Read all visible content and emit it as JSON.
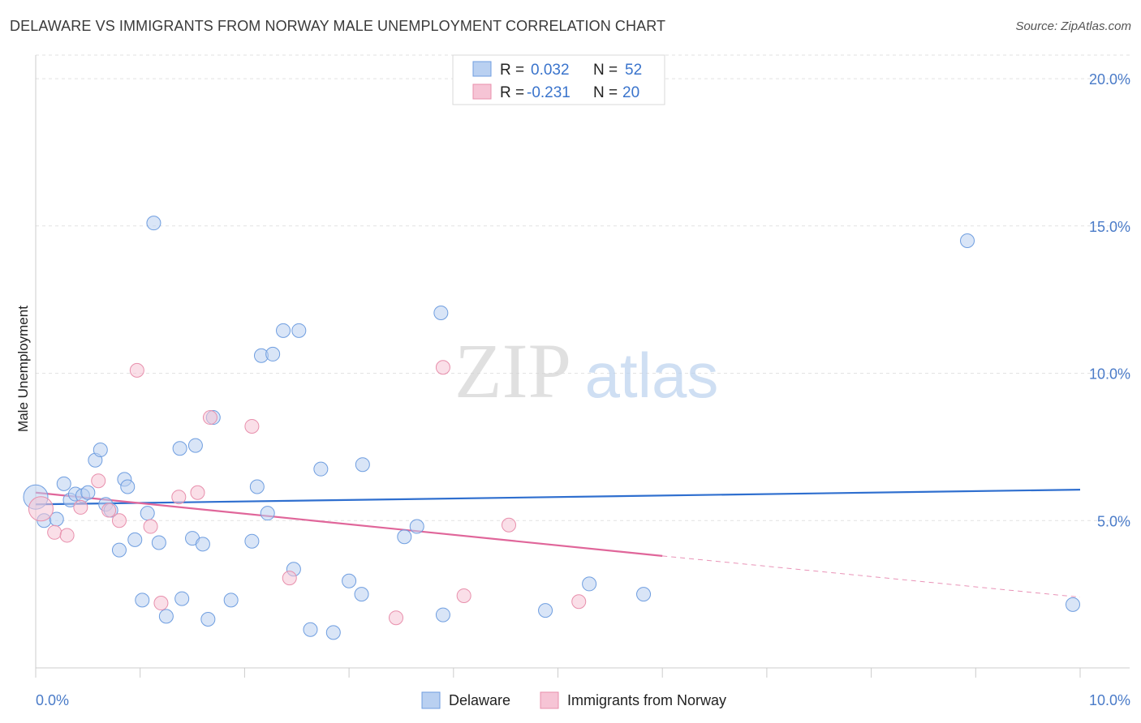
{
  "header": {
    "title": "DELAWARE VS IMMIGRANTS FROM NORWAY MALE UNEMPLOYMENT CORRELATION CHART",
    "source": "Source: ZipAtlas.com"
  },
  "watermark": {
    "zip": "ZIP",
    "atlas": "atlas"
  },
  "chart_data": {
    "type": "scatter",
    "title": "DELAWARE VS IMMIGRANTS FROM NORWAY MALE UNEMPLOYMENT CORRELATION CHART",
    "xlabel": "",
    "ylabel": "Male Unemployment",
    "xlim": [
      0,
      10
    ],
    "ylim": [
      0,
      20.8
    ],
    "x_tick_labels": [
      "0.0%",
      "10.0%"
    ],
    "y_ticks": [
      5,
      10,
      15,
      20
    ],
    "y_tick_labels": [
      "5.0%",
      "10.0%",
      "15.0%",
      "20.0%"
    ],
    "grid": true,
    "legend_position": "top-center",
    "stats": [
      {
        "r_label": "R =",
        "r_value": "0.032",
        "n_label": "N =",
        "n_value": "52"
      },
      {
        "r_label": "R =",
        "r_value": "-0.231",
        "n_label": "N =",
        "n_value": "20"
      }
    ],
    "series": [
      {
        "name": "Delaware",
        "color": "#6f9ee0",
        "fill": "#b9d0f1",
        "trend": {
          "x": [
            0,
            10
          ],
          "y": [
            5.55,
            6.05
          ],
          "color": "#2f6fcf"
        },
        "points": [
          {
            "x": 0.0,
            "y": 5.8,
            "big": true
          },
          {
            "x": 0.08,
            "y": 5.0
          },
          {
            "x": 0.2,
            "y": 5.05
          },
          {
            "x": 0.27,
            "y": 6.25
          },
          {
            "x": 0.33,
            "y": 5.7
          },
          {
            "x": 0.38,
            "y": 5.9
          },
          {
            "x": 0.45,
            "y": 5.85
          },
          {
            "x": 0.5,
            "y": 5.95
          },
          {
            "x": 0.57,
            "y": 7.05
          },
          {
            "x": 0.62,
            "y": 7.4
          },
          {
            "x": 0.67,
            "y": 5.55
          },
          {
            "x": 0.72,
            "y": 5.35
          },
          {
            "x": 0.8,
            "y": 4.0
          },
          {
            "x": 0.85,
            "y": 6.4
          },
          {
            "x": 0.88,
            "y": 6.15
          },
          {
            "x": 0.95,
            "y": 4.35
          },
          {
            "x": 1.02,
            "y": 2.3
          },
          {
            "x": 1.07,
            "y": 5.25
          },
          {
            "x": 1.13,
            "y": 15.1
          },
          {
            "x": 1.18,
            "y": 4.25
          },
          {
            "x": 1.25,
            "y": 1.75
          },
          {
            "x": 1.38,
            "y": 7.45
          },
          {
            "x": 1.4,
            "y": 2.35
          },
          {
            "x": 1.5,
            "y": 4.4
          },
          {
            "x": 1.53,
            "y": 7.55
          },
          {
            "x": 1.6,
            "y": 4.2
          },
          {
            "x": 1.7,
            "y": 8.5
          },
          {
            "x": 1.65,
            "y": 1.65
          },
          {
            "x": 1.87,
            "y": 2.3
          },
          {
            "x": 2.07,
            "y": 4.3
          },
          {
            "x": 2.12,
            "y": 6.15
          },
          {
            "x": 2.16,
            "y": 10.6
          },
          {
            "x": 2.22,
            "y": 5.25
          },
          {
            "x": 2.27,
            "y": 10.65
          },
          {
            "x": 2.37,
            "y": 11.45
          },
          {
            "x": 2.47,
            "y": 3.35
          },
          {
            "x": 2.52,
            "y": 11.45
          },
          {
            "x": 2.63,
            "y": 1.3
          },
          {
            "x": 2.73,
            "y": 6.75
          },
          {
            "x": 2.85,
            "y": 1.2
          },
          {
            "x": 3.0,
            "y": 2.95
          },
          {
            "x": 3.12,
            "y": 2.5
          },
          {
            "x": 3.13,
            "y": 6.9
          },
          {
            "x": 3.53,
            "y": 4.45
          },
          {
            "x": 3.65,
            "y": 4.8
          },
          {
            "x": 3.88,
            "y": 12.05
          },
          {
            "x": 3.9,
            "y": 1.8
          },
          {
            "x": 4.88,
            "y": 1.95
          },
          {
            "x": 5.3,
            "y": 2.85
          },
          {
            "x": 5.82,
            "y": 2.5
          },
          {
            "x": 8.92,
            "y": 14.5
          },
          {
            "x": 9.93,
            "y": 2.15
          }
        ]
      },
      {
        "name": "Immigrants from Norway",
        "color": "#e88fac",
        "fill": "#f6c4d5",
        "trend": {
          "solid_x": [
            0,
            6.0
          ],
          "solid_y": [
            5.95,
            3.8
          ],
          "dashed_x": [
            6.0,
            10
          ],
          "dashed_y": [
            3.8,
            2.4
          ],
          "color": "#e0669a"
        },
        "points": [
          {
            "x": 0.05,
            "y": 5.4,
            "big": true
          },
          {
            "x": 0.18,
            "y": 4.6
          },
          {
            "x": 0.3,
            "y": 4.5
          },
          {
            "x": 0.43,
            "y": 5.45
          },
          {
            "x": 0.6,
            "y": 6.35
          },
          {
            "x": 0.8,
            "y": 5.0
          },
          {
            "x": 0.97,
            "y": 10.1
          },
          {
            "x": 1.1,
            "y": 4.8
          },
          {
            "x": 1.2,
            "y": 2.2
          },
          {
            "x": 1.37,
            "y": 5.8
          },
          {
            "x": 1.67,
            "y": 8.5
          },
          {
            "x": 1.55,
            "y": 5.95
          },
          {
            "x": 2.07,
            "y": 8.2
          },
          {
            "x": 2.43,
            "y": 3.05
          },
          {
            "x": 3.45,
            "y": 1.7
          },
          {
            "x": 3.9,
            "y": 10.2
          },
          {
            "x": 4.1,
            "y": 2.45
          },
          {
            "x": 4.53,
            "y": 4.85
          },
          {
            "x": 5.2,
            "y": 2.25
          },
          {
            "x": 0.7,
            "y": 5.35
          }
        ]
      }
    ]
  }
}
